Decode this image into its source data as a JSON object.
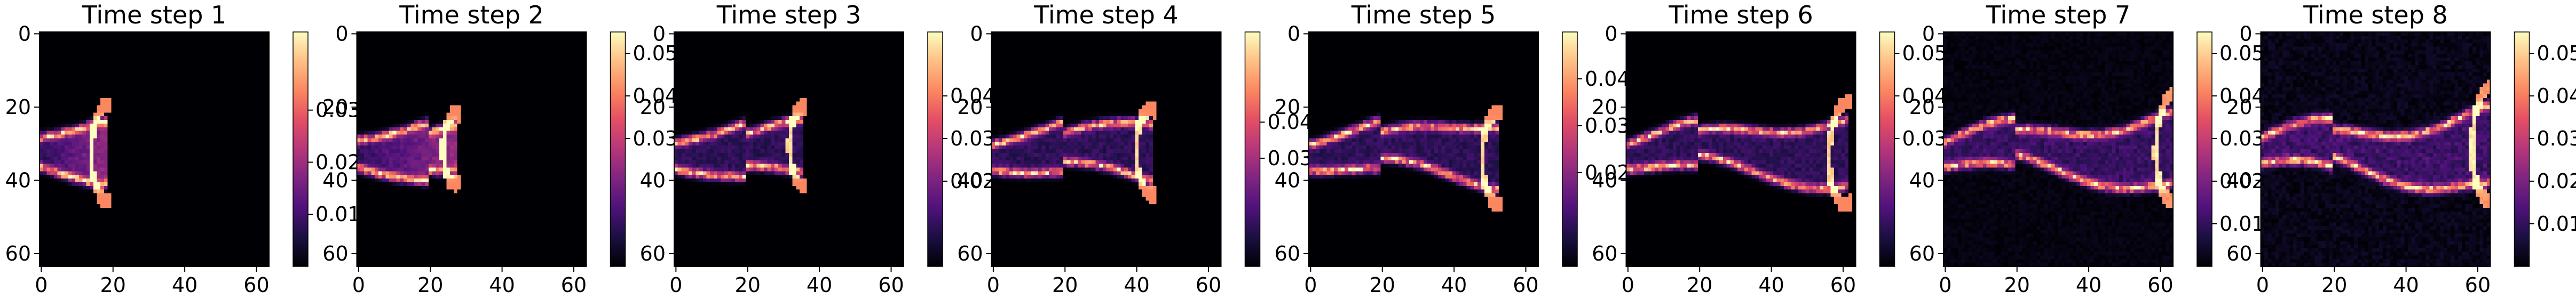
{
  "chart_data": [
    {
      "type": "heatmap",
      "title": "Time step 1",
      "xticks": [
        0,
        20,
        40,
        60
      ],
      "yticks": [
        0,
        20,
        40,
        60
      ],
      "grid_size": 64,
      "colormap": "magma",
      "colorbar_range": [
        0,
        0.045
      ],
      "colorbar_ticks": [
        0.01,
        0.02,
        0.03
      ],
      "colorbar_tick_labels": [
        "0.01",
        "0.02",
        "0.03"
      ],
      "pattern": "bright crescent front near x≈18, plume from left edge around y≈32"
    },
    {
      "type": "heatmap",
      "title": "Time step 2",
      "xticks": [
        0,
        20,
        40,
        60
      ],
      "yticks": [
        0,
        20,
        40,
        60
      ],
      "grid_size": 64,
      "colormap": "magma",
      "colorbar_range": [
        0,
        0.055
      ],
      "colorbar_ticks": [
        0.03,
        0.04,
        0.05
      ],
      "colorbar_tick_labels": [
        "0.03",
        "0.04",
        "0.05"
      ],
      "pattern": "bright crescent front near x≈28, filled plume behind it"
    },
    {
      "type": "heatmap",
      "title": "Time step 3",
      "xticks": [
        0,
        20,
        40,
        60
      ],
      "yticks": [
        0,
        20,
        40,
        60
      ],
      "grid_size": 64,
      "colormap": "magma",
      "colorbar_range": [
        0,
        0.055
      ],
      "colorbar_ticks": [
        0.02,
        0.03,
        0.04
      ],
      "colorbar_tick_labels": [
        "0.02",
        "0.03",
        "0.04"
      ],
      "pattern": "elongated plume with bright edges, front near x≈40"
    },
    {
      "type": "heatmap",
      "title": "Time step 4",
      "xticks": [
        0,
        20,
        40,
        60
      ],
      "yticks": [
        0,
        20,
        40,
        60
      ],
      "grid_size": 64,
      "colormap": "magma",
      "colorbar_range": [
        0,
        0.065
      ],
      "colorbar_ticks": [
        0.03,
        0.04
      ],
      "colorbar_tick_labels": [
        "0.03",
        "0.04"
      ],
      "pattern": "plume edges brighter, front near x≈48"
    },
    {
      "type": "heatmap",
      "title": "Time step 5",
      "xticks": [
        0,
        20,
        40,
        60
      ],
      "yticks": [
        0,
        20,
        40,
        60
      ],
      "grid_size": 64,
      "colormap": "magma",
      "colorbar_range": [
        0,
        0.05
      ],
      "colorbar_ticks": [
        0.02,
        0.03,
        0.04
      ],
      "colorbar_tick_labels": [
        "0.02",
        "0.03",
        "0.04"
      ],
      "pattern": "wavy plume edges, front near x≈58"
    },
    {
      "type": "heatmap",
      "title": "Time step 6",
      "xticks": [
        0,
        20,
        40,
        60
      ],
      "yticks": [
        0,
        20,
        40,
        60
      ],
      "grid_size": 64,
      "colormap": "magma",
      "colorbar_range": [
        0,
        0.055
      ],
      "colorbar_ticks": [
        0.03,
        0.04,
        0.05
      ],
      "colorbar_tick_labels": [
        "0.03",
        "0.04",
        "0.05"
      ],
      "pattern": "wavy plume spanning full width"
    },
    {
      "type": "heatmap",
      "title": "Time step 7",
      "xticks": [
        0,
        20,
        40,
        60
      ],
      "yticks": [
        0,
        20,
        40,
        60
      ],
      "grid_size": 64,
      "colormap": "magma",
      "colorbar_range": [
        0,
        0.055
      ],
      "colorbar_ticks": [
        0.01,
        0.02,
        0.03,
        0.04,
        0.05
      ],
      "colorbar_tick_labels": [
        "0.01",
        "0.02",
        "0.03",
        "0.04",
        "0.05"
      ],
      "pattern": "bright wavy edges across full width, faint background"
    },
    {
      "type": "heatmap",
      "title": "Time step 8",
      "xticks": [
        0,
        20,
        40,
        60
      ],
      "yticks": [
        0,
        20,
        40,
        60
      ],
      "grid_size": 64,
      "colormap": "magma",
      "colorbar_range": [
        0,
        0.055
      ],
      "colorbar_ticks": [
        0.01,
        0.02,
        0.03,
        0.04,
        0.05
      ],
      "colorbar_tick_labels": [
        "0.01",
        "0.02",
        "0.03",
        "0.04",
        "0.05"
      ],
      "pattern": "bright wavy edges, slightly more diffuse background"
    }
  ],
  "colors": {
    "background": "#ffffff",
    "axis": "#000000"
  }
}
